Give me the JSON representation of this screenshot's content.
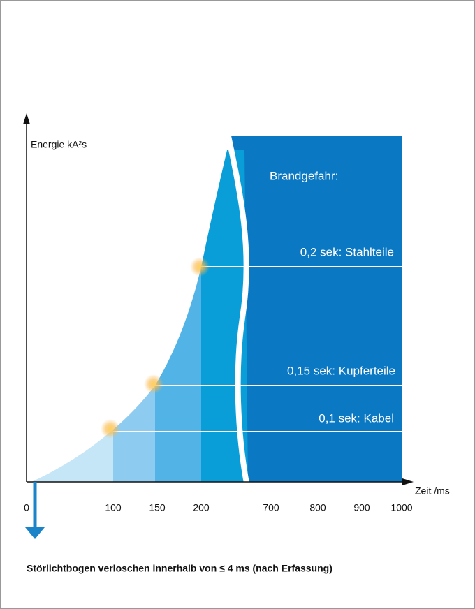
{
  "y_axis_label": "Energie kA²s",
  "x_axis_label": "Zeit /ms",
  "x_tick_labels": [
    "0",
    "100",
    "150",
    "200",
    "700",
    "800",
    "900",
    "1000"
  ],
  "panel_title": "Brandgefahr:",
  "annotations": [
    "0,2 sek: Stahlteile",
    "0,15 sek: Kupferteile",
    "0,1 sek: Kabel"
  ],
  "footer": "Störlichtbogen verloschen innerhalb von ≤ 4 ms (nach Erfassung)"
}
